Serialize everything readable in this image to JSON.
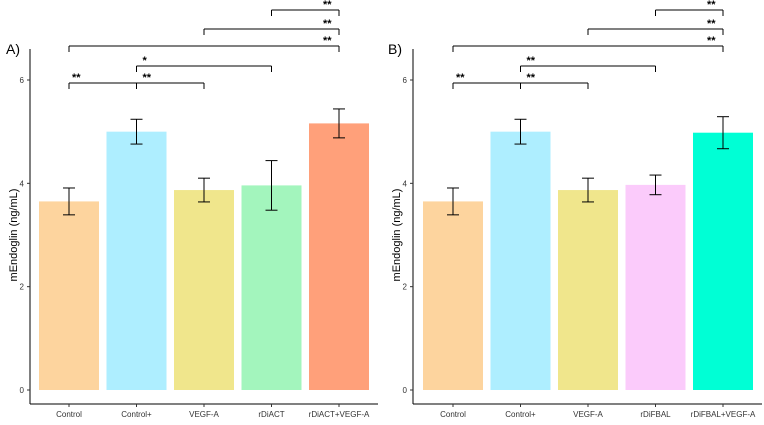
{
  "chart_data": [
    {
      "type": "bar",
      "panel_label": "A)",
      "ylabel": "mEndoglin (ng/mL)",
      "xlabel": "",
      "ylim": [
        0,
        6.5
      ],
      "yticks": [
        "0",
        "2",
        "4",
        "6"
      ],
      "categories": [
        "Control",
        "Control+",
        "VEGF-A",
        "rDiACT",
        "rDiACT+VEGF-A"
      ],
      "values": [
        3.65,
        5.0,
        3.87,
        3.96,
        5.16
      ],
      "errors": [
        0.26,
        0.24,
        0.23,
        0.48,
        0.28
      ],
      "colors": [
        "#FDD49E",
        "#AEEEFF",
        "#F0E68C",
        "#A3F5BD",
        "#FFA07A"
      ],
      "significance": [
        {
          "from": 3,
          "to": 4,
          "label": "**"
        },
        {
          "from": 2,
          "to": 4,
          "label": "**"
        },
        {
          "from": 0,
          "to": 4,
          "label": "**"
        },
        {
          "from": 1,
          "to": 3,
          "label": "*"
        },
        {
          "from": 0,
          "to": 1,
          "label": "**"
        },
        {
          "from": 1,
          "to": 2,
          "label": "**"
        }
      ]
    },
    {
      "type": "bar",
      "panel_label": "B)",
      "ylabel": "mEndoglin (ng/mL)",
      "xlabel": "",
      "ylim": [
        0,
        6.5
      ],
      "yticks": [
        "0",
        "2",
        "4",
        "6"
      ],
      "categories": [
        "Control",
        "Control+",
        "VEGF-A",
        "rDiFBAL",
        "rDiFBAL+VEGF-A"
      ],
      "values": [
        3.65,
        5.0,
        3.87,
        3.97,
        4.98
      ],
      "errors": [
        0.26,
        0.24,
        0.23,
        0.19,
        0.31
      ],
      "colors": [
        "#FDD49E",
        "#AEEEFF",
        "#F0E68C",
        "#FBCBFB",
        "#00FFD5"
      ],
      "significance": [
        {
          "from": 3,
          "to": 4,
          "label": "**"
        },
        {
          "from": 2,
          "to": 4,
          "label": "**"
        },
        {
          "from": 0,
          "to": 4,
          "label": "**"
        },
        {
          "from": 1,
          "to": 3,
          "label": "**"
        },
        {
          "from": 0,
          "to": 1,
          "label": "**"
        },
        {
          "from": 1,
          "to": 2,
          "label": "**"
        }
      ]
    }
  ]
}
